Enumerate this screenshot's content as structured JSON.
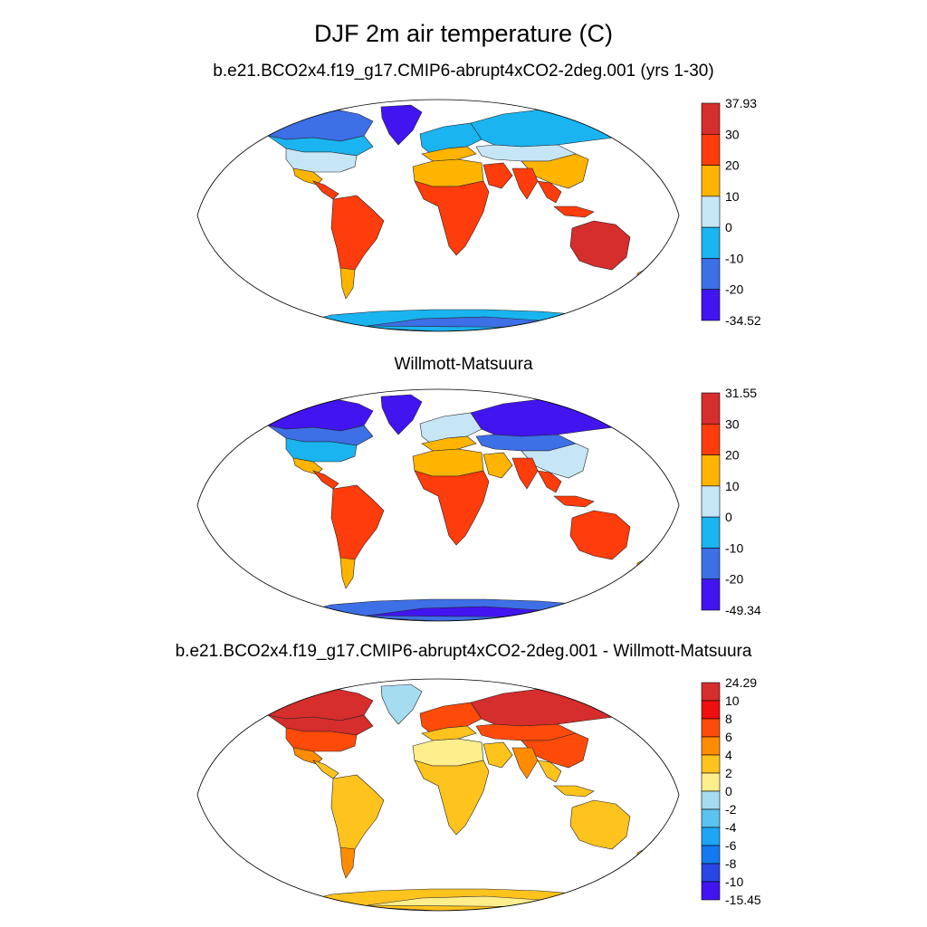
{
  "title": "DJF 2m air temperature (C)",
  "panels": [
    {
      "id": "model",
      "title": "b.e21.BCO2x4.f19_g17.CMIP6-abrupt4xCO2-2deg.001 (yrs 1-30)",
      "colorbar": {
        "labels": [
          "37.93",
          "30",
          "20",
          "10",
          "0",
          "-10",
          "-20",
          "-34.52"
        ],
        "colors": [
          "#d62d2d",
          "#ff3c0c",
          "#ffb400",
          "#c6e6f6",
          "#1ab4f0",
          "#3d6fe6",
          "#4214f0"
        ]
      },
      "palette": {
        "polar": "#4214f0",
        "subpolar": "#3d6fe6",
        "cold": "#1ab4f0",
        "cool": "#c6e6f6",
        "mild": "#ffb400",
        "warm": "#ff3c0c",
        "hot": "#d62d2d"
      },
      "region_colors": {
        "greenland": "polar",
        "canada_north": "subpolar",
        "canada_south": "cold",
        "usa": "cool",
        "mexico": "mild",
        "central_america": "warm",
        "south_america": "warm",
        "patagonia": "mild",
        "europe": "cold",
        "mediterranean": "mild",
        "siberia": "cold",
        "central_asia": "cool",
        "china": "mild",
        "sahara": "mild",
        "africa": "warm",
        "arabia": "warm",
        "india": "warm",
        "se_asia": "warm",
        "indonesia": "warm",
        "australia": "hot",
        "new_zealand": "mild",
        "antarctica": "cold",
        "antarctica_interior": "subpolar"
      }
    },
    {
      "id": "obs",
      "title": "Willmott-Matsuura",
      "colorbar": {
        "labels": [
          "31.55",
          "30",
          "20",
          "10",
          "0",
          "-10",
          "-20",
          "-49.34"
        ],
        "colors": [
          "#d62d2d",
          "#ff3c0c",
          "#ffb400",
          "#c6e6f6",
          "#1ab4f0",
          "#3d6fe6",
          "#4214f0"
        ]
      },
      "palette": {
        "polar": "#4214f0",
        "subpolar": "#3d6fe6",
        "cold": "#1ab4f0",
        "cool": "#c6e6f6",
        "mild": "#ffb400",
        "warm": "#ff3c0c",
        "hot": "#d62d2d"
      },
      "region_colors": {
        "greenland": "polar",
        "canada_north": "polar",
        "canada_south": "subpolar",
        "usa": "cold",
        "mexico": "mild",
        "central_america": "warm",
        "south_america": "warm",
        "patagonia": "mild",
        "europe": "cool",
        "mediterranean": "mild",
        "siberia": "polar",
        "central_asia": "subpolar",
        "china": "cool",
        "sahara": "mild",
        "africa": "warm",
        "arabia": "mild",
        "india": "warm",
        "se_asia": "warm",
        "indonesia": "warm",
        "australia": "warm",
        "new_zealand": "mild",
        "antarctica": "subpolar",
        "antarctica_interior": "polar"
      }
    },
    {
      "id": "diff",
      "title": "b.e21.BCO2x4.f19_g17.CMIP6-abrupt4xCO2-2deg.001 - Willmott-Matsuura",
      "colorbar": {
        "labels": [
          "24.29",
          "10",
          "8",
          "6",
          "4",
          "2",
          "0",
          "-2",
          "-4",
          "-6",
          "-8",
          "-10",
          "-15.45"
        ],
        "colors": [
          "#d62d2d",
          "#f00f0f",
          "#ff4b0a",
          "#ff8c00",
          "#ffc31e",
          "#ffee8c",
          "#a6dcf0",
          "#5ac3ee",
          "#1ea5f5",
          "#1478f0",
          "#2846e6",
          "#4214f0"
        ]
      },
      "palette": {
        "polar": "#d62d2d",
        "subpolar": "#f00f0f",
        "cold": "#ff4b0a",
        "cool": "#ff8c00",
        "mild": "#ffc31e",
        "warm": "#ffee8c",
        "hot": "#a6dcf0"
      },
      "region_colors": {
        "greenland": "hot",
        "canada_north": "polar",
        "canada_south": "polar",
        "usa": "cold",
        "mexico": "cool",
        "central_america": "mild",
        "south_america": "mild",
        "patagonia": "cool",
        "europe": "cold",
        "mediterranean": "mild",
        "siberia": "polar",
        "central_asia": "cold",
        "china": "cold",
        "sahara": "warm",
        "africa": "mild",
        "arabia": "mild",
        "india": "cool",
        "se_asia": "mild",
        "indonesia": "mild",
        "australia": "mild",
        "new_zealand": "mild",
        "antarctica": "mild",
        "antarctica_interior": "warm"
      }
    }
  ]
}
